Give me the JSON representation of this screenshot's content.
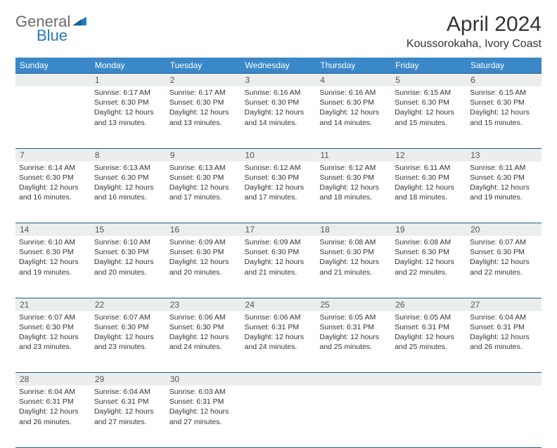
{
  "logo": {
    "word1": "General",
    "word2": "Blue"
  },
  "title": "April 2024",
  "location": "Koussorokaha, Ivory Coast",
  "colors": {
    "header_bg": "#3a88c8",
    "header_text": "#ffffff",
    "border": "#1e5a8f",
    "daynum_bg": "#eceded",
    "daynum_text": "#555555",
    "body_text": "#333333",
    "logo_gray": "#6b6b6b",
    "logo_blue": "#2477bd"
  },
  "weekdays": [
    "Sunday",
    "Monday",
    "Tuesday",
    "Wednesday",
    "Thursday",
    "Friday",
    "Saturday"
  ],
  "weeks": [
    [
      null,
      {
        "n": "1",
        "sr": "6:17 AM",
        "ss": "6:30 PM",
        "dl": "12 hours and 13 minutes."
      },
      {
        "n": "2",
        "sr": "6:17 AM",
        "ss": "6:30 PM",
        "dl": "12 hours and 13 minutes."
      },
      {
        "n": "3",
        "sr": "6:16 AM",
        "ss": "6:30 PM",
        "dl": "12 hours and 14 minutes."
      },
      {
        "n": "4",
        "sr": "6:16 AM",
        "ss": "6:30 PM",
        "dl": "12 hours and 14 minutes."
      },
      {
        "n": "5",
        "sr": "6:15 AM",
        "ss": "6:30 PM",
        "dl": "12 hours and 15 minutes."
      },
      {
        "n": "6",
        "sr": "6:15 AM",
        "ss": "6:30 PM",
        "dl": "12 hours and 15 minutes."
      }
    ],
    [
      {
        "n": "7",
        "sr": "6:14 AM",
        "ss": "6:30 PM",
        "dl": "12 hours and 16 minutes."
      },
      {
        "n": "8",
        "sr": "6:13 AM",
        "ss": "6:30 PM",
        "dl": "12 hours and 16 minutes."
      },
      {
        "n": "9",
        "sr": "6:13 AM",
        "ss": "6:30 PM",
        "dl": "12 hours and 17 minutes."
      },
      {
        "n": "10",
        "sr": "6:12 AM",
        "ss": "6:30 PM",
        "dl": "12 hours and 17 minutes."
      },
      {
        "n": "11",
        "sr": "6:12 AM",
        "ss": "6:30 PM",
        "dl": "12 hours and 18 minutes."
      },
      {
        "n": "12",
        "sr": "6:11 AM",
        "ss": "6:30 PM",
        "dl": "12 hours and 18 minutes."
      },
      {
        "n": "13",
        "sr": "6:11 AM",
        "ss": "6:30 PM",
        "dl": "12 hours and 19 minutes."
      }
    ],
    [
      {
        "n": "14",
        "sr": "6:10 AM",
        "ss": "6:30 PM",
        "dl": "12 hours and 19 minutes."
      },
      {
        "n": "15",
        "sr": "6:10 AM",
        "ss": "6:30 PM",
        "dl": "12 hours and 20 minutes."
      },
      {
        "n": "16",
        "sr": "6:09 AM",
        "ss": "6:30 PM",
        "dl": "12 hours and 20 minutes."
      },
      {
        "n": "17",
        "sr": "6:09 AM",
        "ss": "6:30 PM",
        "dl": "12 hours and 21 minutes."
      },
      {
        "n": "18",
        "sr": "6:08 AM",
        "ss": "6:30 PM",
        "dl": "12 hours and 21 minutes."
      },
      {
        "n": "19",
        "sr": "6:08 AM",
        "ss": "6:30 PM",
        "dl": "12 hours and 22 minutes."
      },
      {
        "n": "20",
        "sr": "6:07 AM",
        "ss": "6:30 PM",
        "dl": "12 hours and 22 minutes."
      }
    ],
    [
      {
        "n": "21",
        "sr": "6:07 AM",
        "ss": "6:30 PM",
        "dl": "12 hours and 23 minutes."
      },
      {
        "n": "22",
        "sr": "6:07 AM",
        "ss": "6:30 PM",
        "dl": "12 hours and 23 minutes."
      },
      {
        "n": "23",
        "sr": "6:06 AM",
        "ss": "6:30 PM",
        "dl": "12 hours and 24 minutes."
      },
      {
        "n": "24",
        "sr": "6:06 AM",
        "ss": "6:31 PM",
        "dl": "12 hours and 24 minutes."
      },
      {
        "n": "25",
        "sr": "6:05 AM",
        "ss": "6:31 PM",
        "dl": "12 hours and 25 minutes."
      },
      {
        "n": "26",
        "sr": "6:05 AM",
        "ss": "6:31 PM",
        "dl": "12 hours and 25 minutes."
      },
      {
        "n": "27",
        "sr": "6:04 AM",
        "ss": "6:31 PM",
        "dl": "12 hours and 26 minutes."
      }
    ],
    [
      {
        "n": "28",
        "sr": "6:04 AM",
        "ss": "6:31 PM",
        "dl": "12 hours and 26 minutes."
      },
      {
        "n": "29",
        "sr": "6:04 AM",
        "ss": "6:31 PM",
        "dl": "12 hours and 27 minutes."
      },
      {
        "n": "30",
        "sr": "6:03 AM",
        "ss": "6:31 PM",
        "dl": "12 hours and 27 minutes."
      },
      null,
      null,
      null,
      null
    ]
  ],
  "labels": {
    "sunrise": "Sunrise:",
    "sunset": "Sunset:",
    "daylight": "Daylight:"
  }
}
